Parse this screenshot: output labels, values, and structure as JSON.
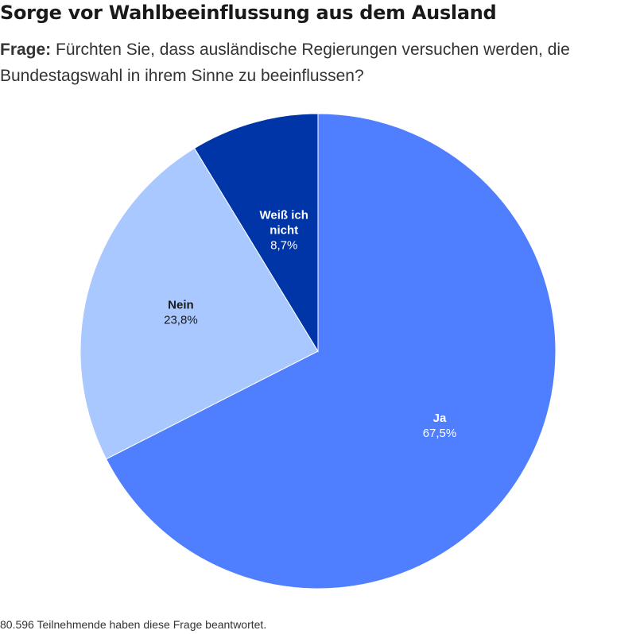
{
  "title": "Sorge vor Wahlbeeinflussung aus dem Ausland",
  "subtitle": {
    "lead": "Frage:",
    "question": "Fürchten Sie, dass ausländische Regierungen versuchen werden, die Bundestagswahl in ihrem Sinne zu beeinflussen?"
  },
  "chart_data": {
    "type": "pie",
    "title": "Sorge vor Wahlbeeinflussung aus dem Ausland",
    "slices": [
      {
        "label": "Ja",
        "value": 67.5,
        "value_label": "67,5%",
        "color": "#4f7fff",
        "text_color": "#ffffff"
      },
      {
        "label": "Nein",
        "value": 23.8,
        "value_label": "23,8%",
        "color": "#a8c8ff",
        "text_color": "#1a1a1a"
      },
      {
        "label": "Weiß ich nicht",
        "value": 8.7,
        "value_label": "8,7%",
        "color": "#0035a8",
        "text_color": "#ffffff"
      }
    ],
    "start_angle_deg": 0,
    "direction": "clockwise",
    "legend": "none"
  },
  "footnote": "80.596 Teilnehmende haben diese Frage beantwortet."
}
